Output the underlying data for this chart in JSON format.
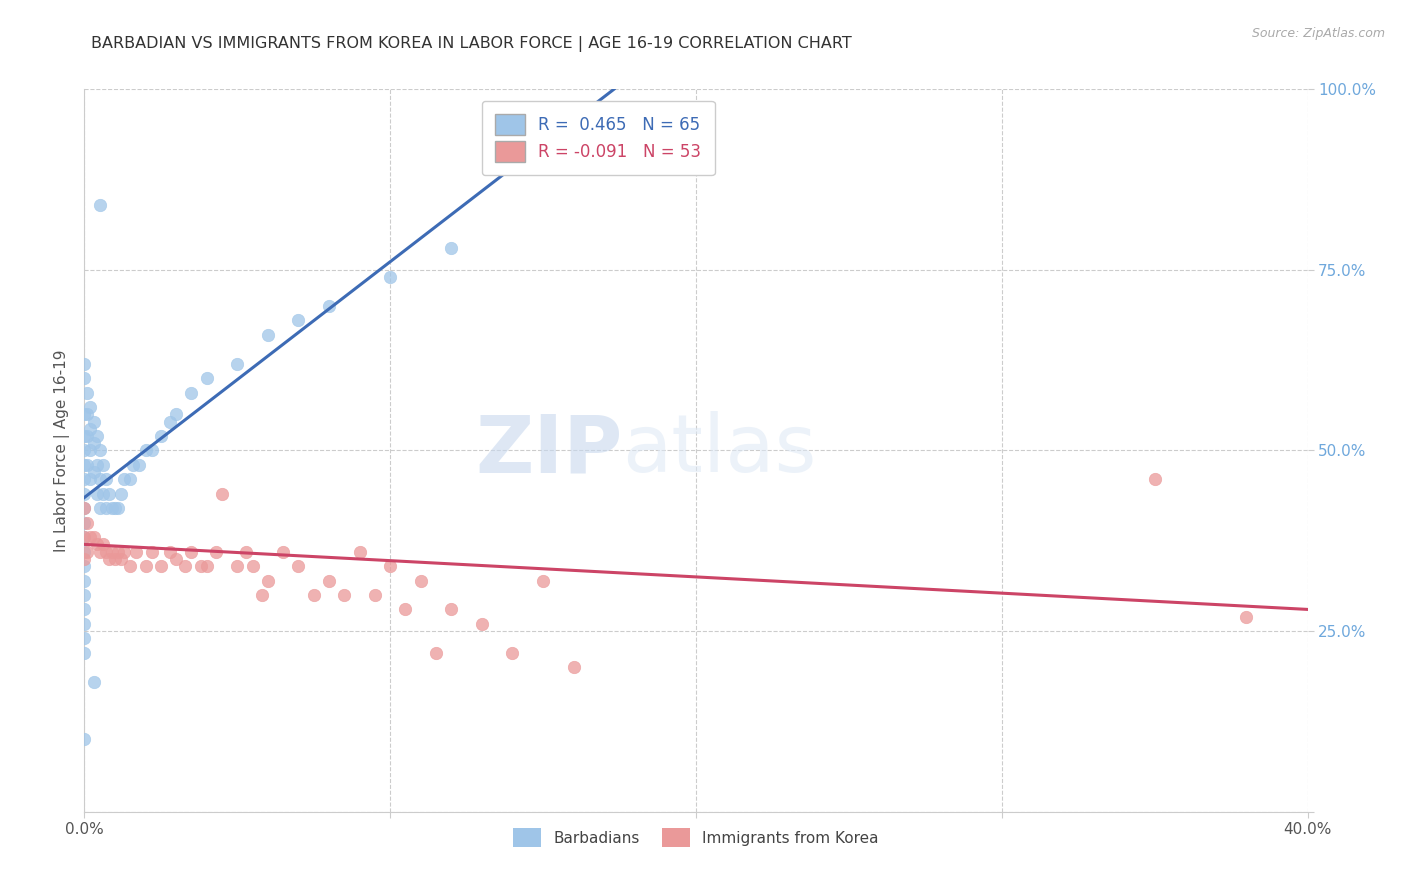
{
  "title": "BARBADIAN VS IMMIGRANTS FROM KOREA IN LABOR FORCE | AGE 16-19 CORRELATION CHART",
  "source": "Source: ZipAtlas.com",
  "ylabel": "In Labor Force | Age 16-19",
  "xlim": [
    0.0,
    0.4
  ],
  "ylim": [
    0.0,
    1.0
  ],
  "blue_R": 0.465,
  "blue_N": 65,
  "pink_R": -0.091,
  "pink_N": 53,
  "blue_color": "#9fc5e8",
  "pink_color": "#ea9999",
  "blue_line_color": "#3d6bb5",
  "pink_line_color": "#cc4466",
  "watermark_zip": "ZIP",
  "watermark_atlas": "atlas",
  "blue_scatter_x": [
    0.0,
    0.0,
    0.0,
    0.0,
    0.0,
    0.0,
    0.0,
    0.0,
    0.0,
    0.0,
    0.0,
    0.0,
    0.0,
    0.0,
    0.0,
    0.0,
    0.0,
    0.0,
    0.0,
    0.0,
    0.001,
    0.001,
    0.001,
    0.001,
    0.002,
    0.002,
    0.002,
    0.002,
    0.003,
    0.003,
    0.003,
    0.004,
    0.004,
    0.004,
    0.005,
    0.005,
    0.005,
    0.006,
    0.006,
    0.007,
    0.007,
    0.008,
    0.009,
    0.01,
    0.011,
    0.012,
    0.013,
    0.015,
    0.016,
    0.018,
    0.02,
    0.022,
    0.025,
    0.028,
    0.03,
    0.035,
    0.04,
    0.05,
    0.06,
    0.07,
    0.08,
    0.1,
    0.12,
    0.005,
    0.003
  ],
  "blue_scatter_y": [
    0.62,
    0.6,
    0.55,
    0.52,
    0.5,
    0.48,
    0.46,
    0.44,
    0.42,
    0.4,
    0.38,
    0.36,
    0.34,
    0.32,
    0.3,
    0.28,
    0.26,
    0.24,
    0.22,
    0.1,
    0.58,
    0.55,
    0.52,
    0.48,
    0.56,
    0.53,
    0.5,
    0.46,
    0.54,
    0.51,
    0.47,
    0.52,
    0.48,
    0.44,
    0.5,
    0.46,
    0.42,
    0.48,
    0.44,
    0.46,
    0.42,
    0.44,
    0.42,
    0.42,
    0.42,
    0.44,
    0.46,
    0.46,
    0.48,
    0.48,
    0.5,
    0.5,
    0.52,
    0.54,
    0.55,
    0.58,
    0.6,
    0.62,
    0.66,
    0.68,
    0.7,
    0.74,
    0.78,
    0.84,
    0.18
  ],
  "pink_scatter_x": [
    0.0,
    0.0,
    0.0,
    0.001,
    0.001,
    0.002,
    0.003,
    0.004,
    0.005,
    0.006,
    0.007,
    0.008,
    0.009,
    0.01,
    0.011,
    0.012,
    0.013,
    0.015,
    0.017,
    0.02,
    0.022,
    0.025,
    0.028,
    0.03,
    0.033,
    0.035,
    0.038,
    0.04,
    0.043,
    0.045,
    0.05,
    0.053,
    0.055,
    0.058,
    0.06,
    0.065,
    0.07,
    0.075,
    0.08,
    0.085,
    0.09,
    0.095,
    0.1,
    0.105,
    0.11,
    0.115,
    0.12,
    0.13,
    0.14,
    0.15,
    0.16,
    0.35,
    0.38
  ],
  "pink_scatter_y": [
    0.42,
    0.38,
    0.35,
    0.4,
    0.36,
    0.38,
    0.38,
    0.37,
    0.36,
    0.37,
    0.36,
    0.35,
    0.36,
    0.35,
    0.36,
    0.35,
    0.36,
    0.34,
    0.36,
    0.34,
    0.36,
    0.34,
    0.36,
    0.35,
    0.34,
    0.36,
    0.34,
    0.34,
    0.36,
    0.44,
    0.34,
    0.36,
    0.34,
    0.3,
    0.32,
    0.36,
    0.34,
    0.3,
    0.32,
    0.3,
    0.36,
    0.3,
    0.34,
    0.28,
    0.32,
    0.22,
    0.28,
    0.26,
    0.22,
    0.32,
    0.2,
    0.46,
    0.27
  ],
  "pink_line_x0": 0.0,
  "pink_line_y0": 0.37,
  "pink_line_x1": 0.4,
  "pink_line_y1": 0.28
}
